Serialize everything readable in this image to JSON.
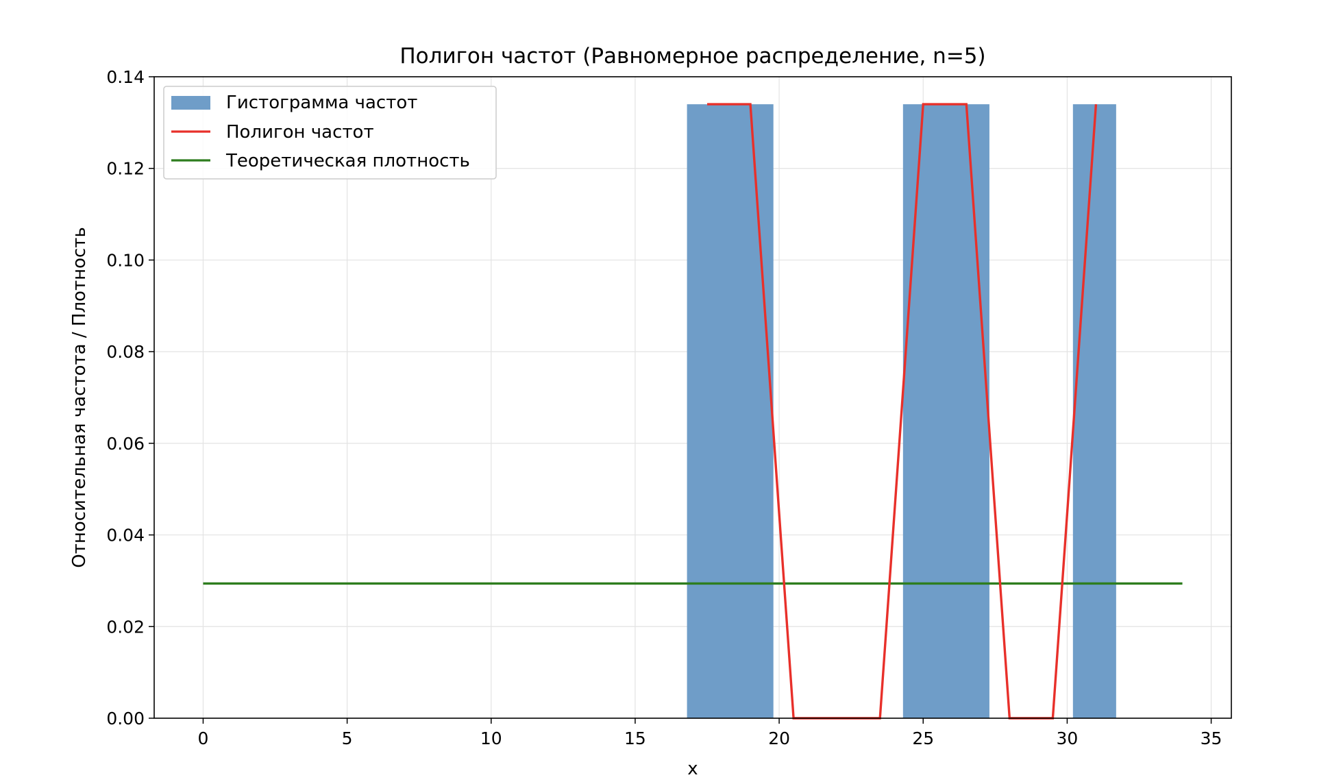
{
  "chart_data": {
    "type": "bar",
    "title": "Полигон частот (Равномерное распределение, n=5)",
    "xlabel": "x",
    "ylabel": "Относительная частота / Плотность",
    "xlim": [
      -1.7,
      35.7
    ],
    "ylim": [
      0,
      0.14
    ],
    "xticks": [
      0,
      5,
      10,
      15,
      20,
      25,
      30,
      35
    ],
    "yticks": [
      0.0,
      0.02,
      0.04,
      0.06,
      0.08,
      0.1,
      0.12,
      0.14
    ],
    "xtick_labels": [
      "0",
      "5",
      "10",
      "15",
      "20",
      "25",
      "30",
      "35"
    ],
    "ytick_labels": [
      "0.00",
      "0.02",
      "0.04",
      "0.06",
      "0.08",
      "0.10",
      "0.12",
      "0.14"
    ],
    "grid": true,
    "legend_position": "top-left",
    "series": [
      {
        "name": "Гистограмма частот",
        "type": "bar",
        "color": "#6f9dc8",
        "bars": [
          {
            "x0": 16.8,
            "x1": 19.8,
            "value": 0.134
          },
          {
            "x0": 24.3,
            "x1": 27.3,
            "value": 0.134
          },
          {
            "x0": 30.2,
            "x1": 31.7,
            "value": 0.134
          }
        ]
      },
      {
        "name": "Полигон частот",
        "type": "line",
        "color": "#e8302a",
        "x": [
          17.5,
          19.0,
          20.5,
          23.5,
          25.0,
          26.5,
          28.0,
          29.5,
          31.0
        ],
        "y": [
          0.134,
          0.134,
          0.0,
          0.0,
          0.134,
          0.134,
          0.0,
          0.0,
          0.134
        ]
      },
      {
        "name": "Теоретическая плотность",
        "type": "line",
        "color": "#2e7d1e",
        "x": [
          0,
          34
        ],
        "y": [
          0.0294,
          0.0294
        ]
      }
    ]
  }
}
